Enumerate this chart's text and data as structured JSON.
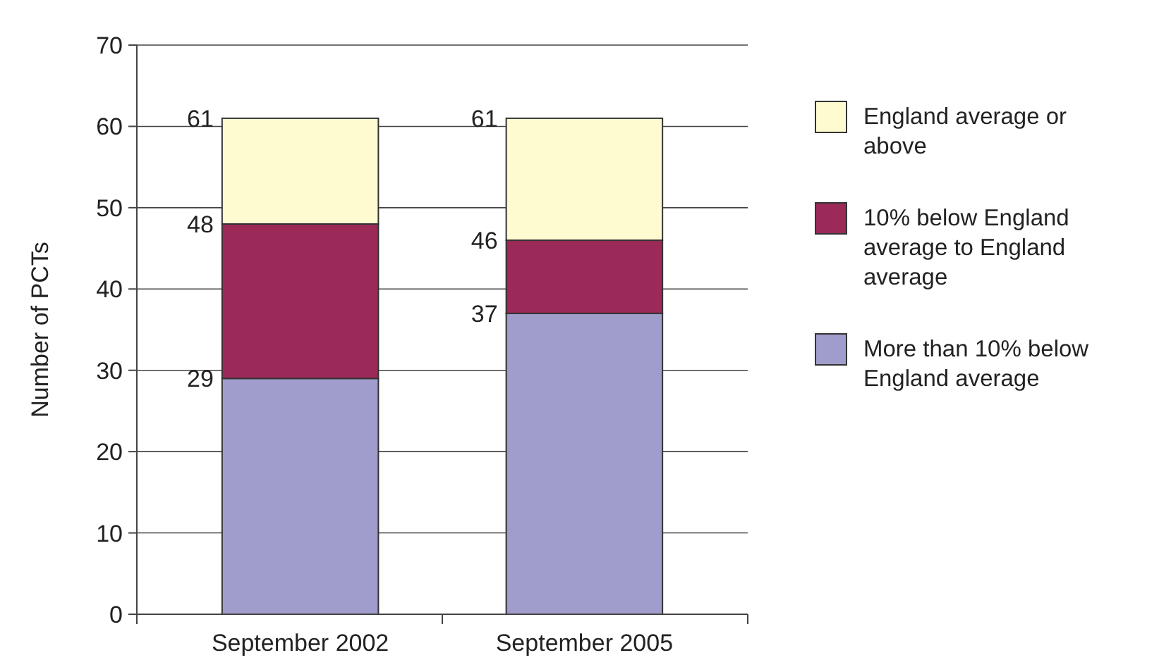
{
  "chart_data": {
    "type": "bar",
    "stacked": true,
    "ylabel": "Number of PCTs",
    "categories": [
      "September 2002",
      "September 2005"
    ],
    "series": [
      {
        "name": "More than 10% below England average",
        "color": "#a09ccb",
        "values": [
          29,
          37
        ]
      },
      {
        "name": "10% below England average to England average",
        "color": "#9b2a58",
        "values": [
          19,
          9
        ]
      },
      {
        "name": "England average or above",
        "color": "#fffbd0",
        "values": [
          13,
          15
        ]
      }
    ],
    "annotations": [
      "29",
      "48",
      "61",
      "37",
      "46",
      "61"
    ],
    "ylim": [
      0,
      70
    ],
    "yticks": [
      0,
      10,
      20,
      30,
      40,
      50,
      60,
      70
    ],
    "grid": "y",
    "legend": "right"
  }
}
